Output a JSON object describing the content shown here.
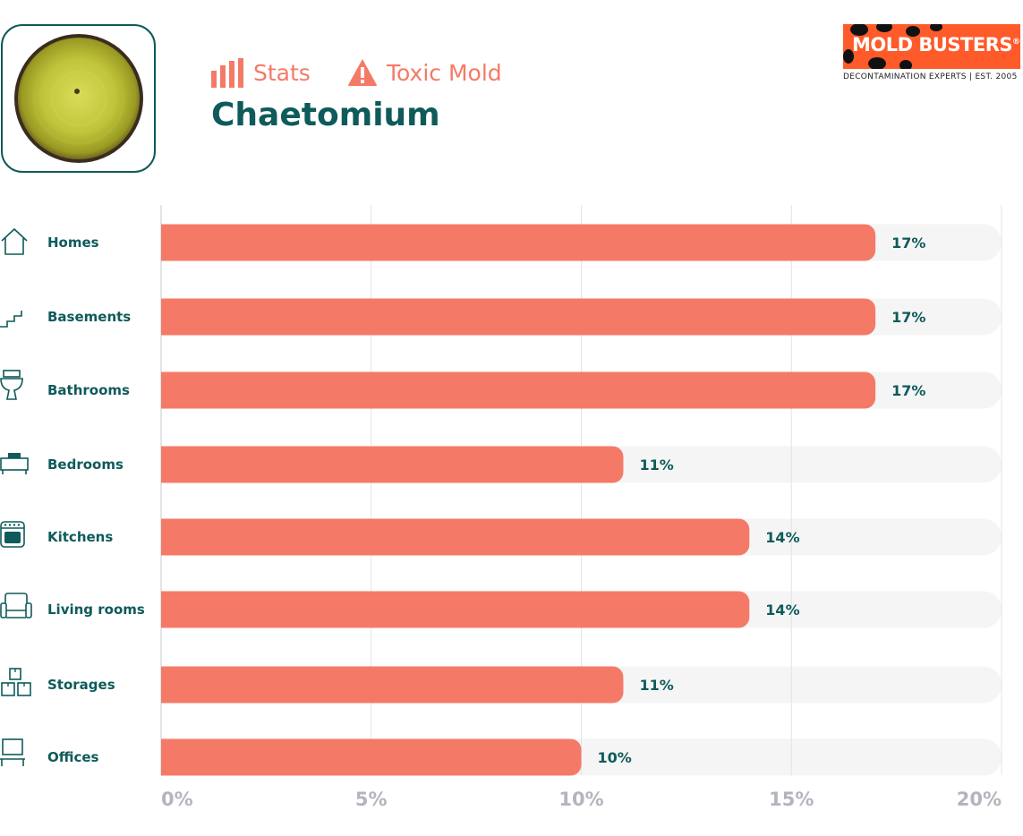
{
  "header": {
    "stats_label": "Stats",
    "toxic_label": "Toxic Mold",
    "title": "Chaetomium"
  },
  "logo": {
    "name": "MOLD BUSTERS",
    "registered": "®",
    "tagline": "DECONTAMINATION EXPERTS | EST. 2005"
  },
  "colors": {
    "accent": "#f47a67",
    "brand_teal": "#0f5a5a",
    "track": "#f5f5f5",
    "grid": "#e4e4e4",
    "tick": "#b4b4be",
    "logo_orange": "#ff5a2a"
  },
  "chart_data": {
    "type": "bar",
    "orientation": "horizontal",
    "categories": [
      "Homes",
      "Basements",
      "Bathrooms",
      "Bedrooms",
      "Kitchens",
      "Living rooms",
      "Storages",
      "Offices"
    ],
    "icons": [
      "house-icon",
      "stairs-icon",
      "toilet-icon",
      "bed-icon",
      "oven-icon",
      "armchair-icon",
      "boxes-icon",
      "monitor-icon"
    ],
    "values": [
      17,
      17,
      17,
      11,
      14,
      14,
      11,
      10
    ],
    "value_labels": [
      "17%",
      "17%",
      "17%",
      "11%",
      "14%",
      "14%",
      "11%",
      "10%"
    ],
    "xlim": [
      0,
      20
    ],
    "ticks": [
      0,
      5,
      10,
      15,
      20
    ],
    "tick_labels": [
      "0%",
      "5%",
      "10%",
      "15%",
      "20%"
    ],
    "grid": true
  }
}
